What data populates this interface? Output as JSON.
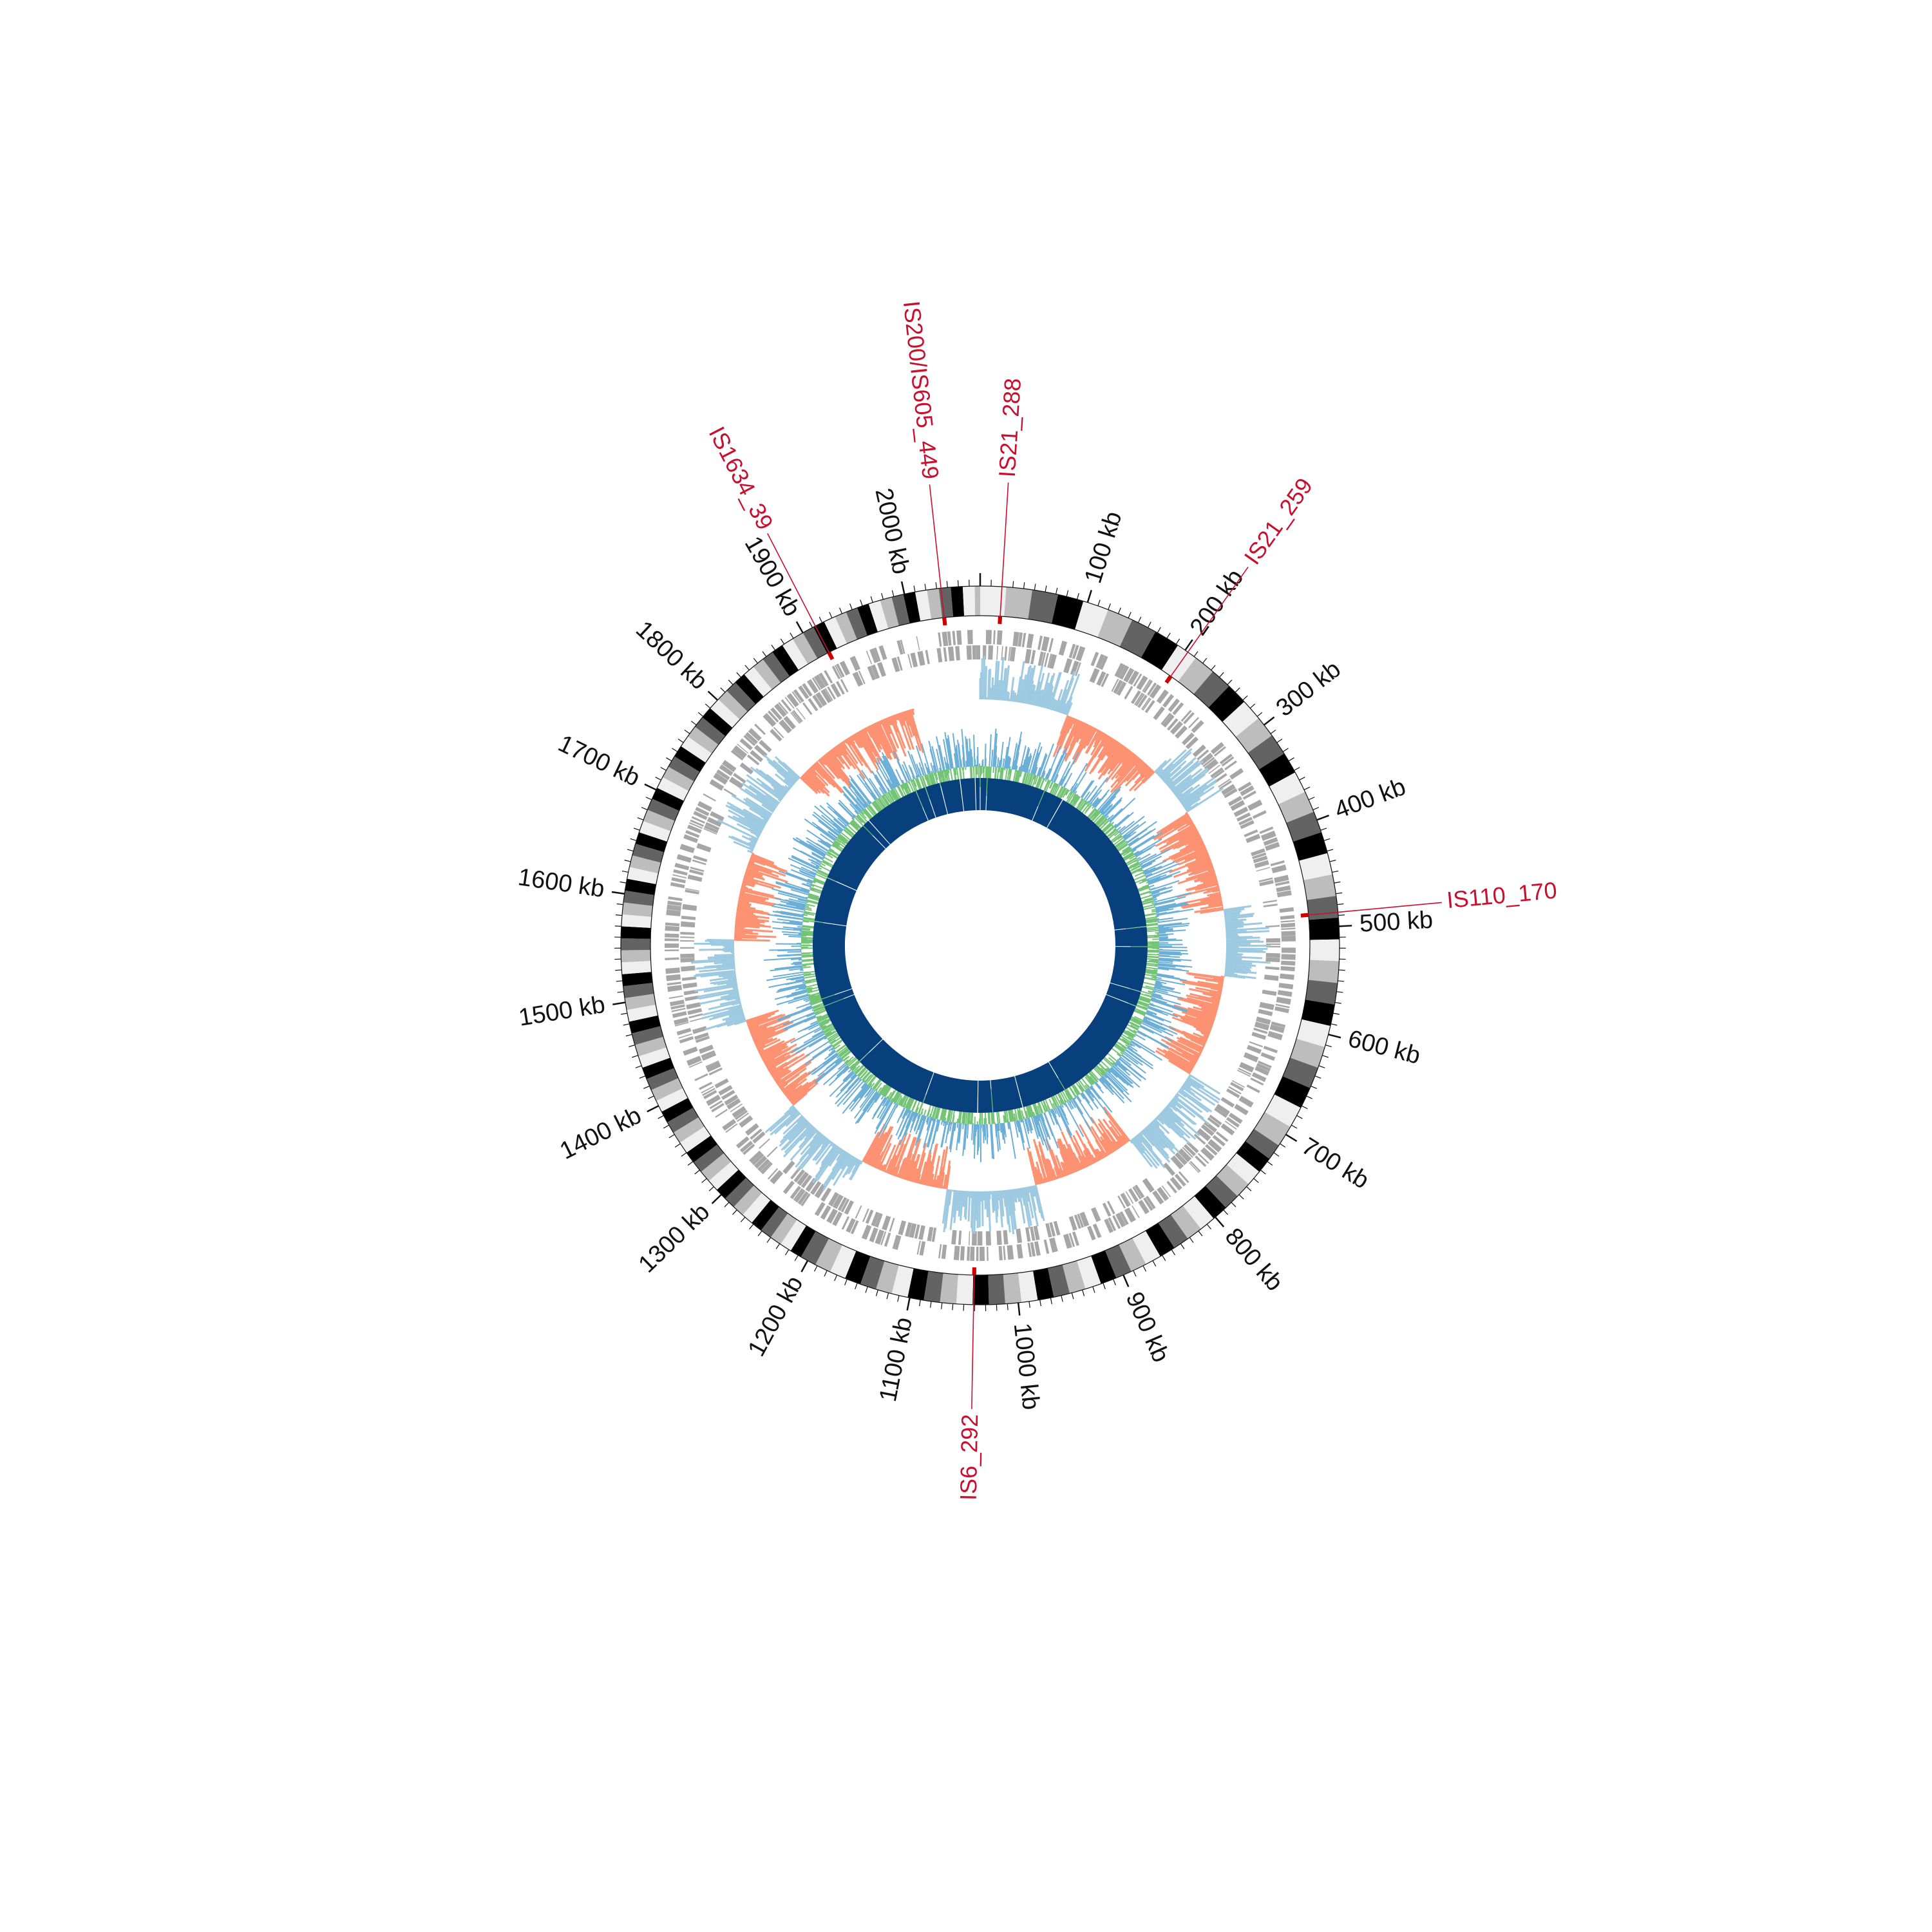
{
  "genome": {
    "size_kb": 2070,
    "tick_labels": [
      {
        "kb": 100,
        "label": "100 kb"
      },
      {
        "kb": 200,
        "label": "200 kb"
      },
      {
        "kb": 300,
        "label": "300 kb"
      },
      {
        "kb": 400,
        "label": "400 kb"
      },
      {
        "kb": 500,
        "label": "500 kb"
      },
      {
        "kb": 600,
        "label": "600 kb"
      },
      {
        "kb": 700,
        "label": "700 kb"
      },
      {
        "kb": 800,
        "label": "800 kb"
      },
      {
        "kb": 900,
        "label": "900 kb"
      },
      {
        "kb": 1000,
        "label": "1000 kb"
      },
      {
        "kb": 1100,
        "label": "1100 kb"
      },
      {
        "kb": 1200,
        "label": "1200 kb"
      },
      {
        "kb": 1300,
        "label": "1300 kb"
      },
      {
        "kb": 1400,
        "label": "1400 kb"
      },
      {
        "kb": 1500,
        "label": "1500 kb"
      },
      {
        "kb": 1600,
        "label": "1600 kb"
      },
      {
        "kb": 1700,
        "label": "1700 kb"
      },
      {
        "kb": 1800,
        "label": "1800 kb"
      },
      {
        "kb": 1900,
        "label": "1900 kb"
      },
      {
        "kb": 2000,
        "label": "2000 kb"
      }
    ]
  },
  "insertion_sequences": [
    {
      "label": "IS21_288",
      "kb": 20
    },
    {
      "label": "IS21_259",
      "kb": 203
    },
    {
      "label": "IS110_170",
      "kb": 487
    },
    {
      "label": "IS6_292",
      "kb": 1041
    },
    {
      "label": "IS1634_39",
      "kb": 1913
    },
    {
      "label": "IS200/IS605_449",
      "kb": 2034
    }
  ],
  "tracks": [
    {
      "name": "karyotype",
      "colors": [
        "#efefef",
        "#bdbdbd",
        "#636363",
        "#000000"
      ]
    },
    {
      "name": "is-elements",
      "color": "#cc0000"
    },
    {
      "name": "genes-forward",
      "color": "#a6a6a6"
    },
    {
      "name": "genes-reverse",
      "color": "#a6a6a6"
    },
    {
      "name": "skew-positive",
      "color": "#9ecae1"
    },
    {
      "name": "skew-negative",
      "color": "#fc9272"
    },
    {
      "name": "gc-content",
      "colors": [
        "#6baed6",
        "#74c476"
      ]
    },
    {
      "name": "homology",
      "color": "#08407e"
    }
  ],
  "colors": {
    "label": "#111111",
    "is_label": "#c8102e",
    "homology": "#08407e"
  }
}
